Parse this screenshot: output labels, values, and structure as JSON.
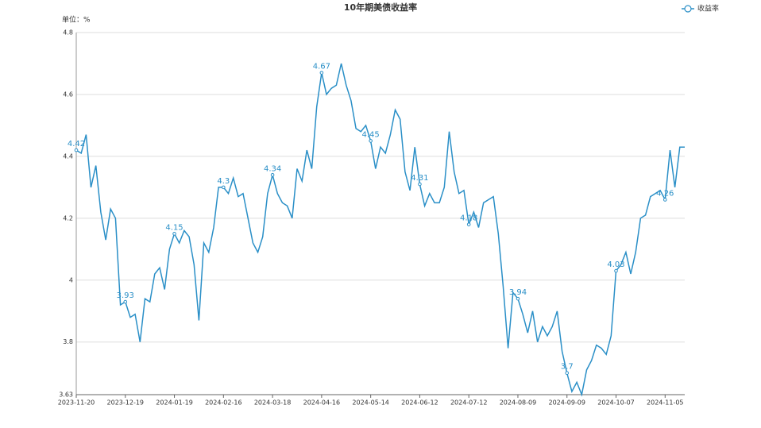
{
  "chart_data": {
    "type": "line",
    "title": "10年期美债收益率",
    "y_label": "单位：%",
    "categories": [
      "2023-11-20",
      null,
      null,
      null,
      null,
      null,
      null,
      null,
      null,
      null,
      "2023-12-19",
      null,
      null,
      null,
      null,
      null,
      null,
      null,
      null,
      null,
      "2024-01-19",
      null,
      null,
      null,
      null,
      null,
      null,
      null,
      null,
      null,
      "2024-02-16",
      null,
      null,
      null,
      null,
      null,
      null,
      null,
      null,
      null,
      "2024-03-18",
      null,
      null,
      null,
      null,
      null,
      null,
      null,
      null,
      null,
      "2024-04-16",
      null,
      null,
      null,
      null,
      null,
      null,
      null,
      null,
      null,
      "2024-05-14",
      null,
      null,
      null,
      null,
      null,
      null,
      null,
      null,
      null,
      "2024-06-12",
      null,
      null,
      null,
      null,
      null,
      null,
      null,
      null,
      null,
      "2024-07-12",
      null,
      null,
      null,
      null,
      null,
      null,
      null,
      null,
      null,
      "2024-08-09",
      null,
      null,
      null,
      null,
      null,
      null,
      null,
      null,
      null,
      "2024-09-09",
      null,
      null,
      null,
      null,
      null,
      null,
      null,
      null,
      null,
      "2024-10-07",
      null,
      null,
      null,
      null,
      null,
      null,
      null,
      null,
      null,
      "2024-11-05",
      null,
      null,
      null,
      null
    ],
    "series": [
      {
        "name": "收益率",
        "color": "#2a8fc7",
        "values": [
          4.42,
          4.41,
          4.47,
          4.3,
          4.37,
          4.22,
          4.13,
          4.23,
          4.2,
          3.92,
          3.93,
          3.88,
          3.89,
          3.8,
          3.94,
          3.93,
          4.02,
          4.04,
          3.97,
          4.1,
          4.15,
          4.12,
          4.16,
          4.14,
          4.05,
          3.87,
          4.12,
          4.09,
          4.17,
          4.3,
          4.3,
          4.28,
          4.33,
          4.27,
          4.28,
          4.2,
          4.12,
          4.09,
          4.14,
          4.28,
          4.34,
          4.28,
          4.25,
          4.24,
          4.2,
          4.36,
          4.32,
          4.42,
          4.36,
          4.56,
          4.67,
          4.6,
          4.62,
          4.63,
          4.7,
          4.63,
          4.58,
          4.49,
          4.48,
          4.5,
          4.45,
          4.36,
          4.43,
          4.41,
          4.47,
          4.55,
          4.52,
          4.35,
          4.29,
          4.43,
          4.31,
          4.24,
          4.28,
          4.25,
          4.25,
          4.3,
          4.48,
          4.35,
          4.28,
          4.29,
          4.18,
          4.22,
          4.17,
          4.25,
          4.26,
          4.27,
          4.15,
          3.98,
          3.78,
          3.96,
          3.94,
          3.89,
          3.83,
          3.9,
          3.8,
          3.85,
          3.82,
          3.85,
          3.9,
          3.77,
          3.7,
          3.64,
          3.67,
          3.63,
          3.71,
          3.74,
          3.79,
          3.78,
          3.76,
          3.82,
          4.03,
          4.05,
          4.09,
          4.02,
          4.09,
          4.2,
          4.21,
          4.27,
          4.28,
          4.29,
          4.26,
          4.42,
          4.3,
          4.43,
          4.43
        ]
      }
    ],
    "ylim": [
      3.63,
      4.8
    ],
    "yticks": [
      3.63,
      3.8,
      4,
      4.2,
      4.4,
      4.6,
      4.8
    ],
    "grid": true,
    "legend": "top-right"
  }
}
